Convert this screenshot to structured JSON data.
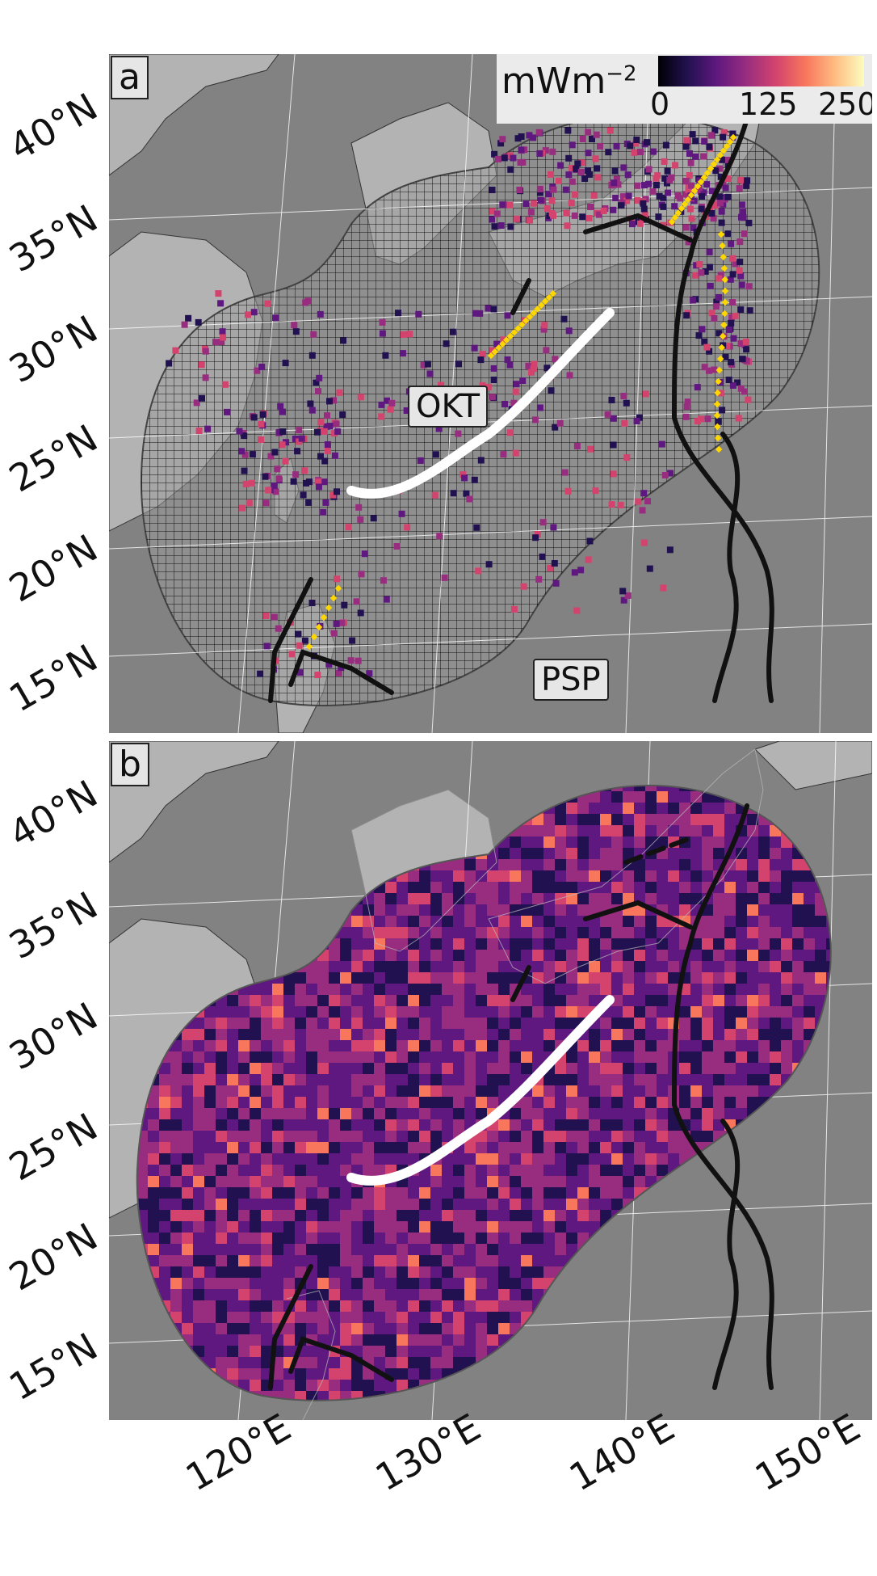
{
  "panel_a": {
    "letter": "a",
    "labels": {
      "okt": "OKT",
      "psp": "PSP"
    },
    "colorbar": {
      "unit": "mWm",
      "unit_exp": "−2",
      "ticks": [
        "0",
        "125",
        "250"
      ],
      "palette": [
        "#000004",
        "#221150",
        "#5f187f",
        "#982d80",
        "#d3436e",
        "#f8765c",
        "#febb81",
        "#fcfdbf"
      ]
    }
  },
  "panel_b": {
    "letter": "b"
  },
  "lat_labels": [
    "40°N",
    "35°N",
    "30°N",
    "25°N",
    "20°N",
    "15°N"
  ],
  "lon_labels": [
    "120°E",
    "130°E",
    "140°E",
    "150°E"
  ],
  "colors": {
    "ocean": "#828282",
    "land": "#b3b3b3",
    "domain_fill": "#a6a6a6",
    "trench": "#111111",
    "ridge_okt": "#ffffff",
    "volcano": "#ffd700"
  }
}
